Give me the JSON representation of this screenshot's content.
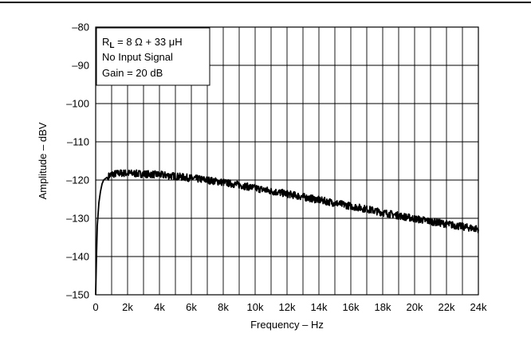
{
  "chart_data": {
    "type": "line",
    "title": "",
    "xlabel": "Frequency – Hz",
    "ylabel": "Amplitude – dBV",
    "xlim": [
      0,
      24000
    ],
    "ylim": [
      -150,
      -80
    ],
    "x_ticks": [
      0,
      2000,
      4000,
      6000,
      8000,
      10000,
      12000,
      14000,
      16000,
      18000,
      20000,
      22000,
      24000
    ],
    "x_tick_labels": [
      "0",
      "2k",
      "4k",
      "6k",
      "8k",
      "10k",
      "12k",
      "14k",
      "16k",
      "18k",
      "20k",
      "22k",
      "24k"
    ],
    "y_ticks": [
      -150,
      -140,
      -130,
      -120,
      -110,
      -100,
      -90,
      -80
    ],
    "y_tick_labels": [
      "–150",
      "–140",
      "–130",
      "–120",
      "–110",
      "–100",
      "–90",
      "–80"
    ],
    "x_minor_step": 1000,
    "grid": true,
    "legend": null,
    "annotation": {
      "lines": [
        "R_L = 8 Ω + 33 μH",
        "No Input Signal",
        "Gain = 20 dB"
      ],
      "placement": "top-left"
    },
    "series": [
      {
        "color": "#000000",
        "x": [
          0,
          50,
          100,
          200,
          300,
          400,
          500,
          700,
          1000,
          1500,
          2000,
          3000,
          4000,
          5000,
          6000,
          7000,
          8000,
          9000,
          10000,
          11000,
          12000,
          13000,
          14000,
          15000,
          16000,
          17000,
          18000,
          19000,
          20000,
          21000,
          22000,
          23000,
          24000
        ],
        "y": [
          -150,
          -140,
          -132,
          -126,
          -123,
          -121,
          -120,
          -119.3,
          -118.5,
          -118.2,
          -118.2,
          -118.4,
          -118.6,
          -119.0,
          -119.5,
          -120.0,
          -120.6,
          -121.3,
          -122.1,
          -122.9,
          -123.6,
          -124.4,
          -125.2,
          -126.0,
          -126.8,
          -127.6,
          -128.5,
          -129.3,
          -130.1,
          -130.8,
          -131.5,
          -132.2,
          -132.8
        ]
      }
    ]
  }
}
